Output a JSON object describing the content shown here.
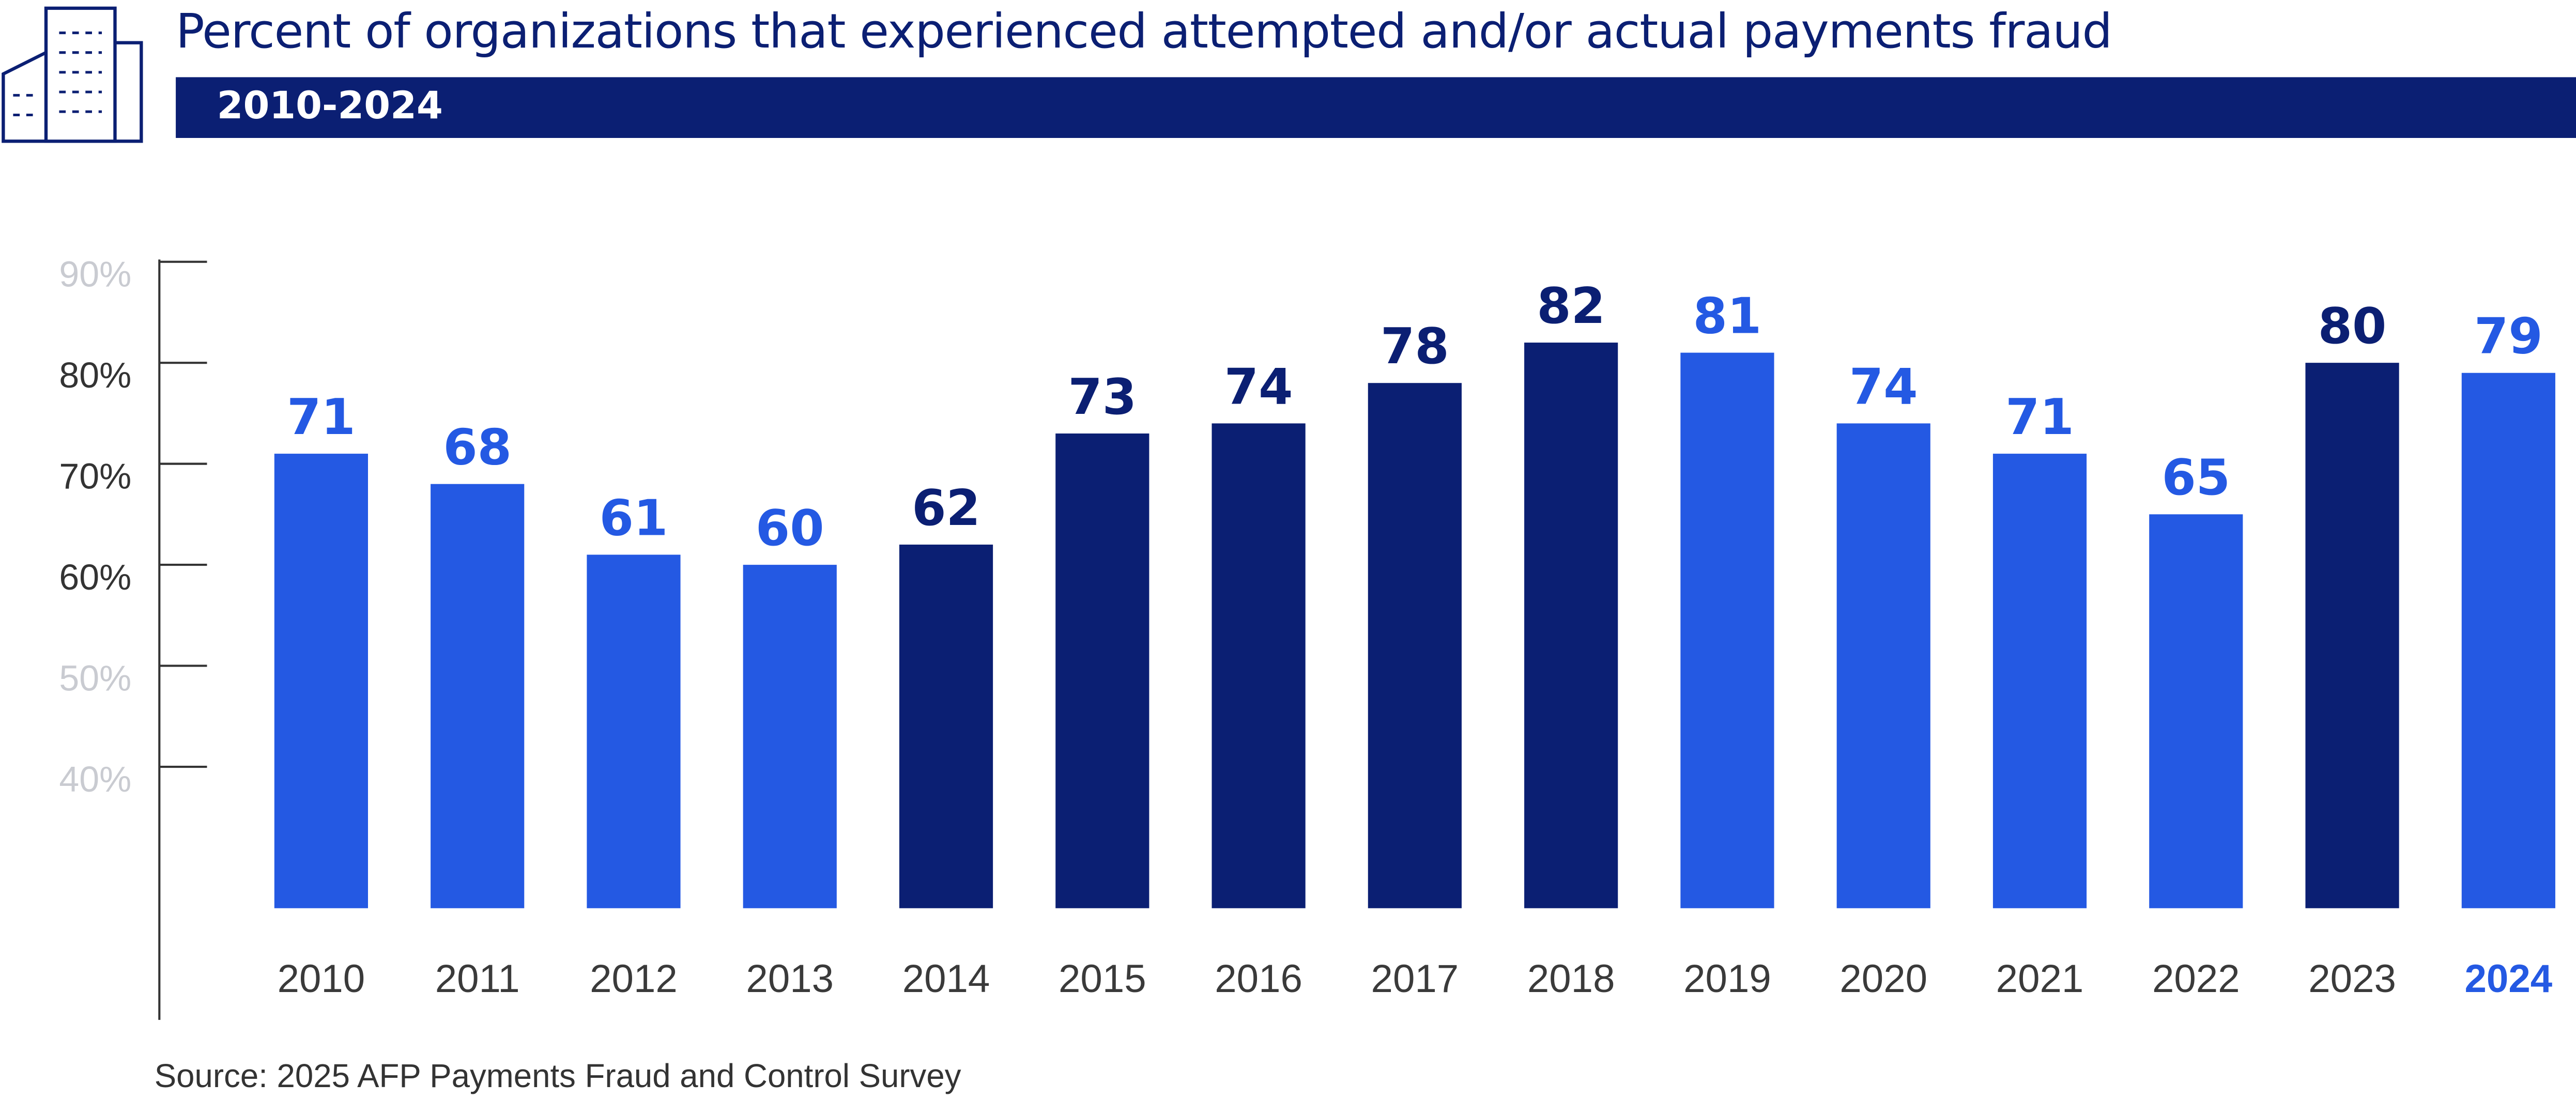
{
  "title": "Percent of organizations that experienced attempted and/or actual payments fraud",
  "subtitle": "2010-2024",
  "source": "Source: 2025 AFP Payments Fraud and Control Survey",
  "colors": {
    "navy": "#0b1f73",
    "blue": "#2459e3",
    "muted_tick": "#c9cbd1",
    "dark_tick": "#333333"
  },
  "icons": {
    "logo": "building-icon"
  },
  "chart_data": {
    "type": "bar",
    "title": "Percent of organizations that experienced attempted and/or actual payments fraud",
    "subtitle": "2010-2024",
    "xlabel": "",
    "ylabel": "",
    "ylim": [
      26,
      90
    ],
    "y_ticks": [
      "90%",
      "80%",
      "70%",
      "60%",
      "50%",
      "40%"
    ],
    "y_tick_values": [
      90,
      80,
      70,
      60,
      50,
      40
    ],
    "y_tick_emphasis": [
      false,
      true,
      true,
      true,
      false,
      false
    ],
    "grid": false,
    "categories": [
      "2010",
      "2011",
      "2012",
      "2013",
      "2014",
      "2015",
      "2016",
      "2017",
      "2018",
      "2019",
      "2020",
      "2021",
      "2022",
      "2023",
      "2024"
    ],
    "values": [
      71,
      68,
      61,
      60,
      62,
      73,
      74,
      78,
      82,
      81,
      74,
      71,
      65,
      80,
      79
    ],
    "bar_colors": [
      "blue",
      "blue",
      "blue",
      "blue",
      "navy",
      "navy",
      "navy",
      "navy",
      "navy",
      "blue",
      "blue",
      "blue",
      "blue",
      "navy",
      "blue"
    ],
    "highlight_category": "2024"
  }
}
